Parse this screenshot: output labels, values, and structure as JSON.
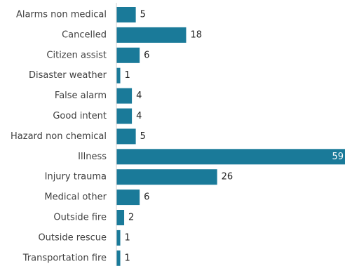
{
  "chart_data": {
    "type": "bar",
    "orientation": "horizontal",
    "categories": [
      "Alarms non medical",
      "Cancelled",
      "Citizen assist",
      "Disaster weather",
      "False alarm",
      "Good intent",
      "Hazard non chemical",
      "Illness",
      "Injury trauma",
      "Medical other",
      "Outside fire",
      "Outside rescue",
      "Transportation fire"
    ],
    "values": [
      5,
      18,
      6,
      1,
      4,
      4,
      5,
      59,
      26,
      6,
      2,
      1,
      1
    ],
    "xlim": [
      0,
      59
    ],
    "grid": false,
    "bar_color": "#1a7a99",
    "axis_color": "#d0d0d0"
  }
}
